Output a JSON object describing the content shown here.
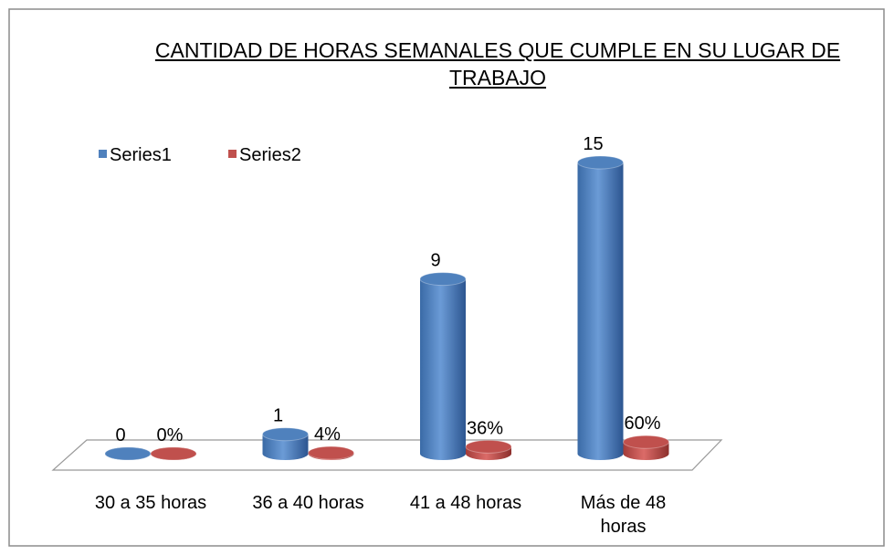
{
  "chart_data": {
    "type": "bar3d",
    "title": "CANTIDAD DE HORAS SEMANALES QUE CUMPLE EN SU LUGAR DE TRABAJO",
    "categories": [
      "30 a 35 horas",
      "36 a 40 horas",
      "41 a 48 horas",
      "Más de 48 horas"
    ],
    "series": [
      {
        "name": "Series1",
        "color": "#4f81bd",
        "values": [
          0,
          1,
          9,
          15
        ]
      },
      {
        "name": "Series2",
        "color": "#c0504d",
        "values": [
          0,
          0.04,
          0.36,
          0.6
        ],
        "value_labels": [
          "0%",
          "4%",
          "36%",
          "60%"
        ]
      }
    ],
    "legend": "top-left"
  }
}
